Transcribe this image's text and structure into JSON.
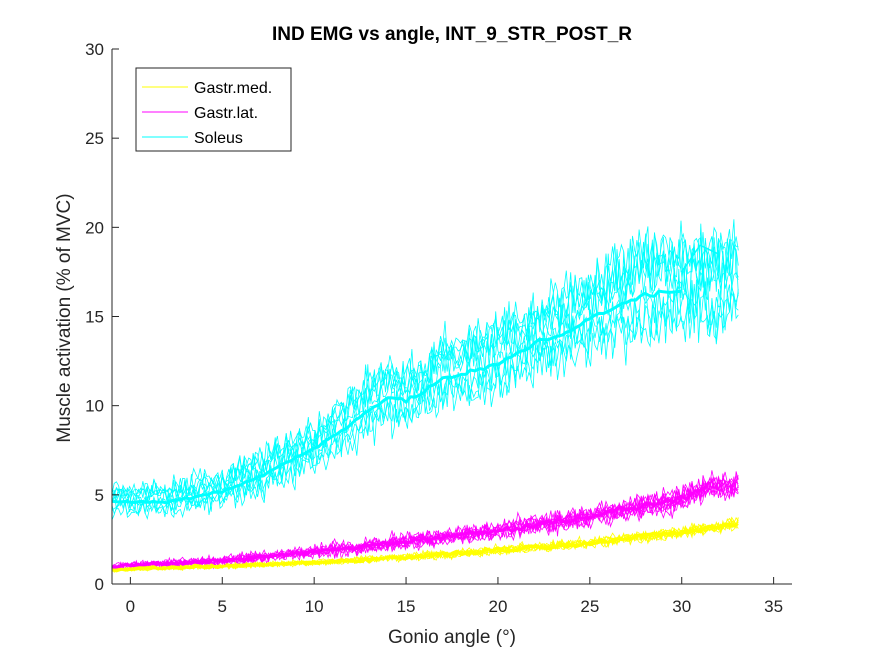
{
  "chart_data": {
    "type": "line",
    "title": "IND EMG vs angle, INT_9_STR_POST_R",
    "xlabel": "Gonio angle (°)",
    "ylabel": "Muscle activation (% of MVC)",
    "xlim": [
      -1,
      36
    ],
    "ylim": [
      0,
      30
    ],
    "xticks": [
      0,
      5,
      10,
      15,
      20,
      25,
      30,
      35
    ],
    "yticks": [
      0,
      5,
      10,
      15,
      20,
      25,
      30
    ],
    "xtick_labels": [
      "0",
      "5",
      "10",
      "15",
      "20",
      "25",
      "30",
      "35"
    ],
    "ytick_labels": [
      "0",
      "5",
      "10",
      "15",
      "20",
      "25",
      "30"
    ],
    "grid": false,
    "legend_position": "top-left",
    "trial_x_end": 33.2,
    "series": [
      {
        "name": "Gastr.med.",
        "color": "#FFFF00",
        "mean_curve": {
          "x": [
            -1,
            5,
            10,
            15,
            20,
            25,
            30,
            32,
            33
          ],
          "y": [
            0.8,
            1.0,
            1.2,
            1.5,
            1.9,
            2.3,
            2.9,
            3.2,
            3.4
          ]
        },
        "trial_spread": 0.6,
        "trial_count": 10
      },
      {
        "name": "Gastr.lat.",
        "color": "#FF00FF",
        "mean_curve": {
          "x": [
            -1,
            5,
            10,
            15,
            20,
            25,
            30,
            31.5
          ],
          "y": [
            1.0,
            1.3,
            1.8,
            2.4,
            3.0,
            3.8,
            4.8,
            5.5
          ]
        },
        "trial_spread": 1.2,
        "trial_count": 10
      },
      {
        "name": "Soleus",
        "color": "#00FFFF",
        "mean_curve": {
          "x": [
            -1,
            2,
            5,
            7,
            10,
            12,
            14,
            15,
            17,
            19,
            20,
            22,
            24,
            25,
            26,
            28,
            30
          ],
          "y": [
            4.6,
            4.6,
            5.2,
            6.0,
            7.6,
            9.0,
            10.5,
            10.2,
            11.5,
            12.0,
            12.3,
            13.5,
            14.2,
            15.0,
            15.3,
            16.2,
            16.4
          ]
        },
        "mean_extension": {
          "x": [
            30,
            31,
            32
          ],
          "y": [
            17.5,
            19.0,
            18.5
          ]
        },
        "trial_spread": 3.5,
        "trial_count": 10
      }
    ]
  }
}
